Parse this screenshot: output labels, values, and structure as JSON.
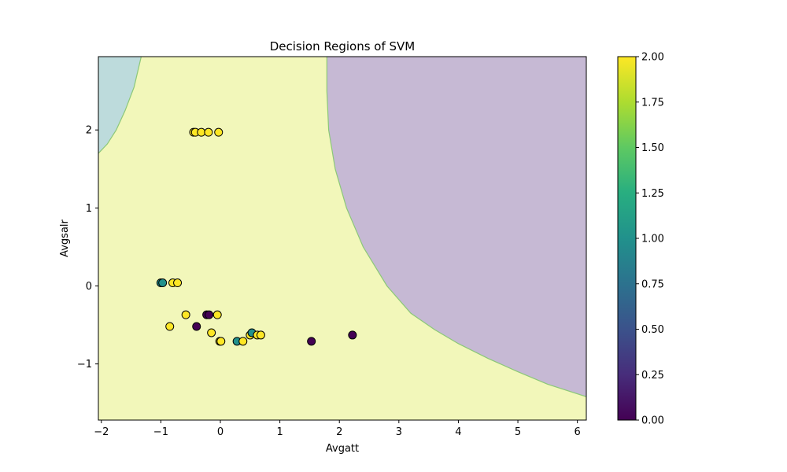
{
  "chart_data": {
    "type": "scatter",
    "title": "Decision Regions of SVM",
    "xlabel": "Avgatt",
    "ylabel": "Avgsalr",
    "xlim": [
      -2.05,
      6.15
    ],
    "ylim": [
      -1.72,
      2.94
    ],
    "x_ticks": [
      -2,
      -1,
      0,
      1,
      2,
      3,
      4,
      5,
      6
    ],
    "y_ticks": [
      -1,
      0,
      1,
      2
    ],
    "grid": false,
    "colormap": "viridis",
    "class_colors": {
      "0": "#440154",
      "1": "#21918c",
      "2": "#fde725"
    },
    "region_colors": {
      "0": "#c6b9d4",
      "1": "#bddbdc",
      "2": "#f2f7ba"
    },
    "boundary_color": "#8cc878",
    "regions": [
      {
        "class": 1,
        "boundary": [
          [
            -2.05,
            1.7
          ],
          [
            -1.9,
            1.82
          ],
          [
            -1.75,
            2.0
          ],
          [
            -1.6,
            2.25
          ],
          [
            -1.45,
            2.55
          ],
          [
            -1.33,
            2.94
          ]
        ]
      },
      {
        "class": 0,
        "boundary": [
          [
            1.79,
            2.94
          ],
          [
            1.79,
            2.5
          ],
          [
            1.82,
            2.0
          ],
          [
            1.93,
            1.5
          ],
          [
            2.12,
            1.0
          ],
          [
            2.4,
            0.5
          ],
          [
            2.8,
            0.0
          ],
          [
            3.2,
            -0.35
          ],
          [
            3.6,
            -0.56
          ],
          [
            4.0,
            -0.74
          ],
          [
            4.5,
            -0.93
          ],
          [
            5.0,
            -1.1
          ],
          [
            5.5,
            -1.26
          ],
          [
            6.15,
            -1.42
          ]
        ]
      }
    ],
    "points": [
      {
        "x": -0.45,
        "y": 1.97,
        "c": 2
      },
      {
        "x": -0.42,
        "y": 1.97,
        "c": 2
      },
      {
        "x": -0.32,
        "y": 1.97,
        "c": 2
      },
      {
        "x": -0.2,
        "y": 1.97,
        "c": 2
      },
      {
        "x": -0.03,
        "y": 1.97,
        "c": 2
      },
      {
        "x": -1.0,
        "y": 0.04,
        "c": 1
      },
      {
        "x": -0.97,
        "y": 0.04,
        "c": 1
      },
      {
        "x": -0.8,
        "y": 0.04,
        "c": 2
      },
      {
        "x": -0.72,
        "y": 0.04,
        "c": 2
      },
      {
        "x": -0.58,
        "y": -0.37,
        "c": 2
      },
      {
        "x": -0.23,
        "y": -0.37,
        "c": 0
      },
      {
        "x": -0.19,
        "y": -0.37,
        "c": 0
      },
      {
        "x": -0.05,
        "y": -0.37,
        "c": 2
      },
      {
        "x": -0.85,
        "y": -0.52,
        "c": 2
      },
      {
        "x": -0.4,
        "y": -0.52,
        "c": 0
      },
      {
        "x": -0.15,
        "y": -0.6,
        "c": 2
      },
      {
        "x": -0.01,
        "y": -0.71,
        "c": 2
      },
      {
        "x": 0.01,
        "y": -0.71,
        "c": 2
      },
      {
        "x": 0.28,
        "y": -0.71,
        "c": 1
      },
      {
        "x": 0.38,
        "y": -0.71,
        "c": 2
      },
      {
        "x": 0.5,
        "y": -0.63,
        "c": 2
      },
      {
        "x": 0.53,
        "y": -0.6,
        "c": 1
      },
      {
        "x": 0.62,
        "y": -0.63,
        "c": 2
      },
      {
        "x": 0.68,
        "y": -0.63,
        "c": 2
      },
      {
        "x": 1.53,
        "y": -0.71,
        "c": 0
      },
      {
        "x": 2.22,
        "y": -0.63,
        "c": 0
      }
    ],
    "colorbar": {
      "range": [
        0.0,
        2.0
      ],
      "ticks": [
        "0.00",
        "0.25",
        "0.50",
        "0.75",
        "1.00",
        "1.25",
        "1.50",
        "1.75",
        "2.00"
      ]
    }
  }
}
